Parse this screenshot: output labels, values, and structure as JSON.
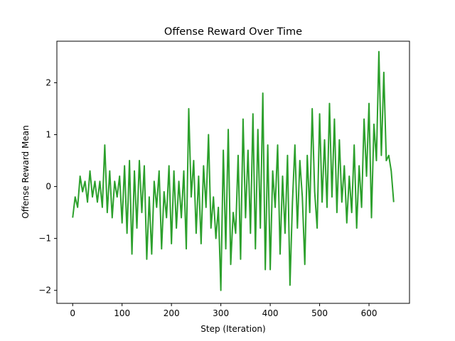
{
  "chart_data": {
    "type": "line",
    "title": "Offense Reward Over Time",
    "xlabel": "Step (Iteration)",
    "ylabel": "Offense Reward Mean",
    "xlim": [
      -32,
      682
    ],
    "ylim": [
      -2.25,
      2.8
    ],
    "xticks": [
      0,
      100,
      200,
      300,
      400,
      500,
      600
    ],
    "yticks": [
      -2,
      -1,
      0,
      1,
      2
    ],
    "ytick_labels": [
      "−2",
      "−1",
      "0",
      "1",
      "2"
    ],
    "grid": false,
    "legend": "none",
    "series": [
      {
        "color": "#2ca02c",
        "x": [
          0,
          5,
          10,
          15,
          20,
          25,
          30,
          35,
          40,
          45,
          50,
          55,
          60,
          65,
          70,
          75,
          80,
          85,
          90,
          95,
          100,
          105,
          110,
          115,
          120,
          125,
          130,
          135,
          140,
          145,
          150,
          155,
          160,
          165,
          170,
          175,
          180,
          185,
          190,
          195,
          200,
          205,
          210,
          215,
          220,
          225,
          230,
          235,
          240,
          245,
          250,
          255,
          260,
          265,
          270,
          275,
          280,
          285,
          290,
          295,
          300,
          305,
          310,
          315,
          320,
          325,
          330,
          335,
          340,
          345,
          350,
          355,
          360,
          365,
          370,
          375,
          380,
          385,
          390,
          395,
          400,
          405,
          410,
          415,
          420,
          425,
          430,
          435,
          440,
          445,
          450,
          455,
          460,
          465,
          470,
          475,
          480,
          485,
          490,
          495,
          500,
          505,
          510,
          515,
          520,
          525,
          530,
          535,
          540,
          545,
          550,
          555,
          560,
          565,
          570,
          575,
          580,
          585,
          590,
          595,
          600,
          605,
          610,
          615,
          620,
          625,
          630,
          635,
          640,
          645,
          650
        ],
        "y": [
          -0.6,
          -0.2,
          -0.4,
          0.2,
          -0.1,
          0.1,
          -0.3,
          0.3,
          -0.2,
          0.1,
          -0.3,
          0.1,
          -0.4,
          0.8,
          -0.5,
          0.3,
          -0.6,
          0.1,
          -0.2,
          0.2,
          -0.7,
          0.4,
          -0.9,
          0.5,
          -1.3,
          0.3,
          -0.8,
          0.5,
          -0.5,
          0.4,
          -1.4,
          -0.2,
          -1.3,
          0.1,
          -0.4,
          0.3,
          -1.2,
          -0.1,
          -0.6,
          0.4,
          -1.1,
          0.3,
          -0.8,
          0.1,
          -0.6,
          0.3,
          -1.2,
          1.5,
          -0.2,
          0.5,
          -0.9,
          0.2,
          -1.1,
          0.4,
          -0.4,
          1.0,
          -0.8,
          -0.2,
          -1.0,
          -0.4,
          -2.0,
          0.7,
          -1.2,
          1.1,
          -1.5,
          -0.5,
          -0.9,
          0.6,
          -1.4,
          1.3,
          -0.6,
          0.7,
          -0.9,
          1.4,
          -1.2,
          1.1,
          -0.8,
          1.8,
          -1.6,
          0.8,
          -1.6,
          0.3,
          -0.4,
          0.8,
          -1.3,
          0.2,
          -0.9,
          0.6,
          -1.9,
          -0.3,
          0.8,
          -0.8,
          0.5,
          -0.2,
          -1.5,
          0.6,
          -0.5,
          1.5,
          -0.1,
          -0.8,
          1.4,
          -0.3,
          0.9,
          -0.4,
          1.6,
          -0.2,
          1.3,
          -0.5,
          0.9,
          -0.3,
          0.4,
          -0.7,
          0.2,
          -0.5,
          0.8,
          -0.8,
          0.4,
          -0.4,
          1.3,
          0.2,
          1.6,
          -0.6,
          1.2,
          0.5,
          2.6,
          0.6,
          2.2,
          0.5,
          0.6,
          0.3,
          -0.3
        ]
      }
    ]
  }
}
